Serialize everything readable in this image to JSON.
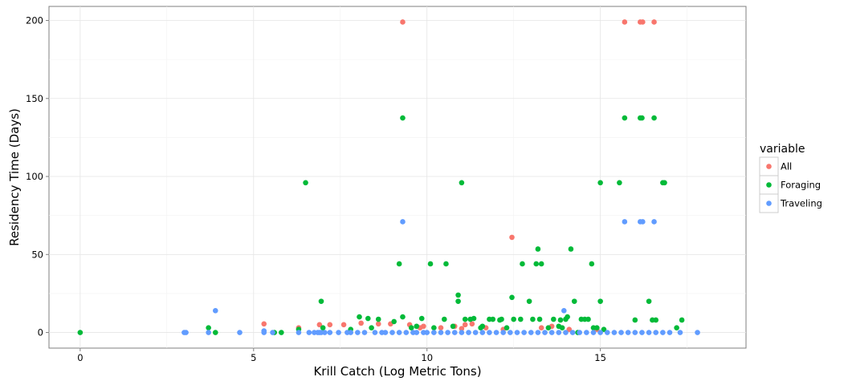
{
  "chart_data": {
    "type": "scatter",
    "xlabel": "Krill Catch (Log Metric Tons)",
    "ylabel": "Residency Time (Days)",
    "xlim": [
      -0.9,
      19.2
    ],
    "ylim": [
      -10,
      209
    ],
    "xticks": [
      0,
      5,
      10,
      15
    ],
    "yticks": [
      0,
      50,
      100,
      150,
      200
    ],
    "grid": true,
    "legend": {
      "title": "variable",
      "placement": "right"
    },
    "series": [
      {
        "name": "All",
        "color": "#F8766D",
        "points": [
          [
            9.3,
            199
          ],
          [
            15.7,
            199
          ],
          [
            16.15,
            199
          ],
          [
            16.22,
            199
          ],
          [
            16.55,
            199
          ],
          [
            12.45,
            61
          ],
          [
            5.3,
            5.5
          ],
          [
            6.3,
            3
          ],
          [
            6.9,
            5
          ],
          [
            7.2,
            5
          ],
          [
            7.6,
            5
          ],
          [
            8.1,
            6
          ],
          [
            8.6,
            5.5
          ],
          [
            8.95,
            5.5
          ],
          [
            9.5,
            5
          ],
          [
            9.9,
            4
          ],
          [
            10.4,
            3
          ],
          [
            10.8,
            4
          ],
          [
            11.1,
            5
          ],
          [
            11.3,
            5.5
          ],
          [
            11.7,
            3
          ],
          [
            12.2,
            2
          ],
          [
            13.3,
            3
          ],
          [
            13.6,
            4
          ],
          [
            14.1,
            2
          ],
          [
            14.9,
            2
          ],
          [
            9.8,
            3
          ],
          [
            11.0,
            2.5
          ]
        ]
      },
      {
        "name": "Foraging",
        "color": "#00BA38",
        "points": [
          [
            0,
            0
          ],
          [
            3.7,
            3
          ],
          [
            3.9,
            0
          ],
          [
            5.6,
            0
          ],
          [
            5.8,
            0
          ],
          [
            6.3,
            2
          ],
          [
            6.5,
            96
          ],
          [
            6.95,
            20
          ],
          [
            7.0,
            3
          ],
          [
            7.8,
            2
          ],
          [
            8.05,
            10
          ],
          [
            8.3,
            9
          ],
          [
            8.4,
            3
          ],
          [
            8.6,
            8.5
          ],
          [
            9.05,
            7
          ],
          [
            9.2,
            44
          ],
          [
            9.3,
            137.5
          ],
          [
            9.3,
            10
          ],
          [
            9.55,
            3
          ],
          [
            9.85,
            9
          ],
          [
            10.1,
            44
          ],
          [
            10.2,
            3
          ],
          [
            10.5,
            8.5
          ],
          [
            10.55,
            44
          ],
          [
            10.75,
            4
          ],
          [
            10.9,
            24
          ],
          [
            10.9,
            20
          ],
          [
            11.0,
            96
          ],
          [
            11.1,
            8.5
          ],
          [
            11.25,
            8.5
          ],
          [
            11.35,
            9
          ],
          [
            11.6,
            4
          ],
          [
            11.8,
            8.5
          ],
          [
            11.9,
            8.5
          ],
          [
            12.1,
            8
          ],
          [
            12.15,
            8.5
          ],
          [
            12.45,
            22.5
          ],
          [
            12.5,
            8.5
          ],
          [
            12.7,
            8.5
          ],
          [
            12.75,
            44
          ],
          [
            12.95,
            20
          ],
          [
            13.05,
            8.5
          ],
          [
            13.15,
            44
          ],
          [
            13.2,
            53.5
          ],
          [
            13.25,
            8.5
          ],
          [
            13.3,
            44
          ],
          [
            13.5,
            3
          ],
          [
            13.65,
            8.5
          ],
          [
            13.8,
            4
          ],
          [
            13.85,
            8
          ],
          [
            14.0,
            8.5
          ],
          [
            14.05,
            10
          ],
          [
            14.15,
            53.5
          ],
          [
            14.25,
            20
          ],
          [
            14.45,
            8.5
          ],
          [
            14.55,
            8.5
          ],
          [
            14.65,
            8.5
          ],
          [
            14.75,
            44
          ],
          [
            14.8,
            3
          ],
          [
            14.9,
            3
          ],
          [
            15.0,
            96
          ],
          [
            15.0,
            20
          ],
          [
            15.1,
            2
          ],
          [
            15.55,
            96
          ],
          [
            15.7,
            137.5
          ],
          [
            16.0,
            8
          ],
          [
            16.15,
            137.5
          ],
          [
            16.2,
            137.5
          ],
          [
            16.4,
            20
          ],
          [
            16.5,
            8
          ],
          [
            16.55,
            137.5
          ],
          [
            16.6,
            8
          ],
          [
            16.8,
            96
          ],
          [
            16.85,
            96
          ],
          [
            17.2,
            3
          ],
          [
            17.35,
            8
          ],
          [
            11.55,
            3
          ],
          [
            12.3,
            3
          ],
          [
            9.7,
            4
          ],
          [
            14.35,
            0
          ],
          [
            13.9,
            3
          ]
        ]
      },
      {
        "name": "Traveling",
        "color": "#619CFF",
        "points": [
          [
            3.0,
            0
          ],
          [
            3.05,
            0
          ],
          [
            3.7,
            0
          ],
          [
            3.9,
            14
          ],
          [
            4.6,
            0
          ],
          [
            5.3,
            0
          ],
          [
            5.3,
            1
          ],
          [
            5.55,
            0
          ],
          [
            6.3,
            0
          ],
          [
            6.6,
            0
          ],
          [
            6.75,
            0
          ],
          [
            6.85,
            0
          ],
          [
            6.9,
            0
          ],
          [
            6.95,
            0
          ],
          [
            7.05,
            0
          ],
          [
            7.2,
            0
          ],
          [
            7.45,
            0
          ],
          [
            7.7,
            0
          ],
          [
            7.8,
            0
          ],
          [
            8.0,
            0
          ],
          [
            8.2,
            0
          ],
          [
            8.5,
            0
          ],
          [
            8.7,
            0
          ],
          [
            8.8,
            0
          ],
          [
            9.0,
            0
          ],
          [
            9.2,
            0
          ],
          [
            9.3,
            71
          ],
          [
            9.4,
            0
          ],
          [
            9.6,
            0
          ],
          [
            9.7,
            0
          ],
          [
            9.9,
            0
          ],
          [
            10.0,
            0
          ],
          [
            10.2,
            0
          ],
          [
            10.4,
            0
          ],
          [
            10.6,
            0
          ],
          [
            10.8,
            0
          ],
          [
            11.0,
            0
          ],
          [
            11.2,
            0
          ],
          [
            11.4,
            0
          ],
          [
            11.6,
            0
          ],
          [
            11.8,
            0
          ],
          [
            12.0,
            0
          ],
          [
            12.2,
            0
          ],
          [
            12.4,
            0
          ],
          [
            12.6,
            0
          ],
          [
            12.8,
            0
          ],
          [
            13.0,
            0
          ],
          [
            13.2,
            0
          ],
          [
            13.4,
            0
          ],
          [
            13.6,
            0
          ],
          [
            13.8,
            0
          ],
          [
            13.95,
            14
          ],
          [
            14.0,
            0
          ],
          [
            14.2,
            0
          ],
          [
            14.4,
            0
          ],
          [
            14.6,
            0
          ],
          [
            14.8,
            0
          ],
          [
            15.0,
            0
          ],
          [
            15.2,
            0
          ],
          [
            15.4,
            0
          ],
          [
            15.6,
            0
          ],
          [
            15.7,
            71
          ],
          [
            15.8,
            0
          ],
          [
            16.0,
            0
          ],
          [
            16.15,
            71
          ],
          [
            16.22,
            71
          ],
          [
            16.2,
            0
          ],
          [
            16.4,
            0
          ],
          [
            16.55,
            71
          ],
          [
            16.6,
            0
          ],
          [
            16.8,
            0
          ],
          [
            17.0,
            0
          ],
          [
            17.3,
            0
          ],
          [
            17.8,
            0
          ]
        ]
      }
    ]
  }
}
